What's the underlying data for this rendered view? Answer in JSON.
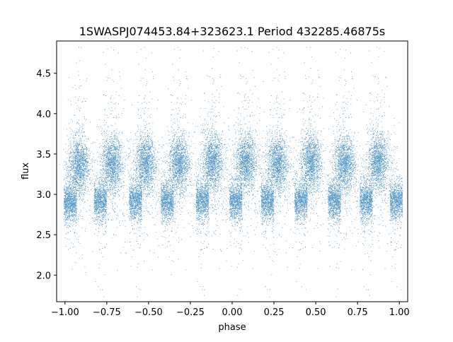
{
  "chart_data": {
    "type": "scatter",
    "title": "1SWASPJ074453.84+323623.1 Period 432285.46875s",
    "xlabel": "phase",
    "ylabel": "flux",
    "xlim": [
      -1.05,
      1.05
    ],
    "ylim": [
      1.67,
      4.9
    ],
    "x_ticks": [
      -1.0,
      -0.75,
      -0.5,
      -0.25,
      0.0,
      0.25,
      0.5,
      0.75,
      1.0
    ],
    "x_tick_labels": [
      "−1.00",
      "−0.75",
      "−0.50",
      "−0.25",
      "0.00",
      "0.25",
      "0.50",
      "0.75",
      "1.00"
    ],
    "y_ticks": [
      2.0,
      2.5,
      3.0,
      3.5,
      4.0,
      4.5
    ],
    "y_tick_labels": [
      "2.0",
      "2.5",
      "3.0",
      "3.5",
      "4.0",
      "4.5"
    ],
    "grid": false,
    "legend": "none",
    "marker_color": "#1f77b4",
    "series": [
      {
        "description_of_pattern": "phase-folded light curve, alternating bands",
        "bands_high": [
          {
            "x_center": -0.92,
            "y_center": 3.35
          },
          {
            "x_center": -0.72,
            "y_center": 3.38
          },
          {
            "x_center": -0.52,
            "y_center": 3.38
          },
          {
            "x_center": -0.32,
            "y_center": 3.38
          },
          {
            "x_center": -0.12,
            "y_center": 3.4
          },
          {
            "x_center": 0.08,
            "y_center": 3.4
          },
          {
            "x_center": 0.27,
            "y_center": 3.38
          },
          {
            "x_center": 0.47,
            "y_center": 3.4
          },
          {
            "x_center": 0.67,
            "y_center": 3.38
          },
          {
            "x_center": 0.87,
            "y_center": 3.4
          }
        ],
        "bands_low": [
          {
            "x_center": -0.97,
            "y_center": 2.9
          },
          {
            "x_center": -0.79,
            "y_center": 2.92
          },
          {
            "x_center": -0.58,
            "y_center": 2.92
          },
          {
            "x_center": -0.39,
            "y_center": 2.92
          },
          {
            "x_center": -0.18,
            "y_center": 2.92
          },
          {
            "x_center": 0.02,
            "y_center": 2.92
          },
          {
            "x_center": 0.21,
            "y_center": 2.92
          },
          {
            "x_center": 0.41,
            "y_center": 2.92
          },
          {
            "x_center": 0.61,
            "y_center": 2.92
          },
          {
            "x_center": 0.8,
            "y_center": 2.92
          },
          {
            "x_center": 0.98,
            "y_center": 2.92
          }
        ]
      }
    ]
  }
}
